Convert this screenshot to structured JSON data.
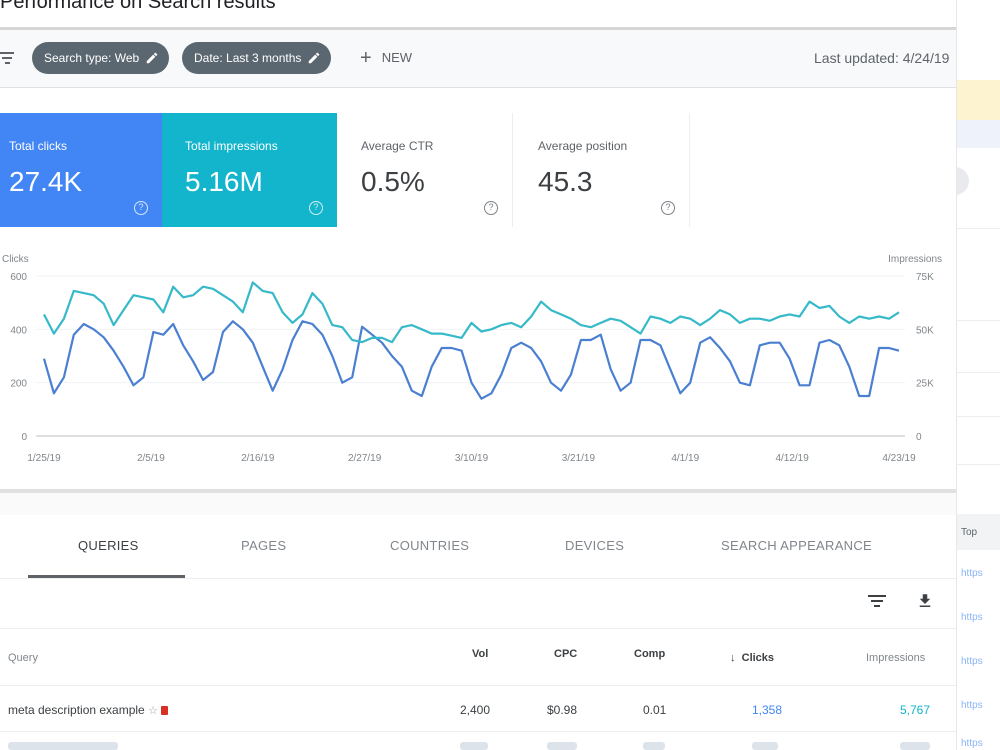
{
  "page": {
    "title": "Performance on Search results",
    "last_updated": "Last updated: 4/24/19"
  },
  "filters": {
    "chips": [
      {
        "label": "Search type: Web"
      },
      {
        "label": "Date: Last 3 months"
      }
    ],
    "new_label": "NEW"
  },
  "metrics": [
    {
      "label": "Total clicks",
      "value": "27.4K",
      "color": "#4285f4"
    },
    {
      "label": "Total impressions",
      "value": "5.16M",
      "color": "#12b5cb"
    },
    {
      "label": "Average CTR",
      "value": "0.5%"
    },
    {
      "label": "Average position",
      "value": "45.3"
    }
  ],
  "chart_data": {
    "type": "line",
    "ylabel_left": "Clicks",
    "ylabel_right": "Impressions",
    "y_left_ticks": [
      "0",
      "200",
      "400",
      "600"
    ],
    "y_right_ticks": [
      "0",
      "25K",
      "50K",
      "75K"
    ],
    "ylim_left": [
      0,
      600
    ],
    "ylim_right": [
      0,
      75000
    ],
    "x_ticks": [
      "1/25/19",
      "2/5/19",
      "2/16/19",
      "2/27/19",
      "3/10/19",
      "3/21/19",
      "4/1/19",
      "4/12/19",
      "4/23/19"
    ],
    "grid": true,
    "series": [
      {
        "name": "Clicks",
        "axis": "left",
        "color": "#4a7fd1",
        "values": [
          290,
          160,
          220,
          380,
          420,
          400,
          370,
          320,
          260,
          190,
          220,
          390,
          380,
          420,
          340,
          280,
          210,
          240,
          390,
          430,
          400,
          350,
          260,
          170,
          250,
          360,
          430,
          420,
          380,
          300,
          200,
          220,
          410,
          380,
          350,
          300,
          260,
          170,
          150,
          260,
          330,
          330,
          320,
          200,
          140,
          160,
          230,
          330,
          350,
          330,
          280,
          200,
          170,
          230,
          360,
          360,
          380,
          250,
          170,
          200,
          360,
          360,
          340,
          250,
          160,
          200,
          350,
          370,
          330,
          280,
          200,
          190,
          340,
          350,
          350,
          290,
          190,
          190,
          350,
          360,
          340,
          260,
          150,
          150,
          330,
          330,
          320
        ]
      },
      {
        "name": "Impressions",
        "axis": "right",
        "color": "#36b9c9",
        "values": [
          57000,
          48000,
          55000,
          68000,
          67000,
          66000,
          62000,
          52000,
          59000,
          66000,
          65000,
          64000,
          58000,
          70000,
          65000,
          66000,
          70000,
          69000,
          66000,
          63000,
          58000,
          72000,
          68000,
          67000,
          58000,
          53000,
          57000,
          67000,
          62000,
          52000,
          51000,
          45000,
          44000,
          46000,
          46000,
          44000,
          51000,
          52000,
          50000,
          48000,
          48000,
          47000,
          46000,
          53000,
          49000,
          50000,
          52000,
          53000,
          51000,
          56000,
          63000,
          59000,
          57000,
          55000,
          52000,
          51000,
          53000,
          55000,
          54000,
          51000,
          48000,
          56000,
          55000,
          53000,
          56000,
          55000,
          52000,
          55000,
          59000,
          57000,
          53000,
          55000,
          55000,
          54000,
          56000,
          57000,
          56000,
          63000,
          60000,
          61000,
          56000,
          53000,
          56000,
          55000,
          56000,
          55000,
          58000
        ]
      }
    ]
  },
  "tabs": [
    {
      "label": "QUERIES",
      "active": true
    },
    {
      "label": "PAGES"
    },
    {
      "label": "COUNTRIES"
    },
    {
      "label": "DEVICES"
    },
    {
      "label": "SEARCH APPEARANCE"
    }
  ],
  "table": {
    "columns": [
      "Query",
      "Vol",
      "CPC",
      "Comp",
      "Clicks",
      "Impressions"
    ],
    "rows": [
      {
        "query": "meta description example",
        "vol": "2,400",
        "cpc": "$0.98",
        "comp": "0.01",
        "clicks": "1,358",
        "impressions": "5,767"
      }
    ]
  },
  "right_panel": {
    "header": "Top",
    "links": [
      "https",
      "https",
      "https",
      "https",
      "https"
    ]
  }
}
